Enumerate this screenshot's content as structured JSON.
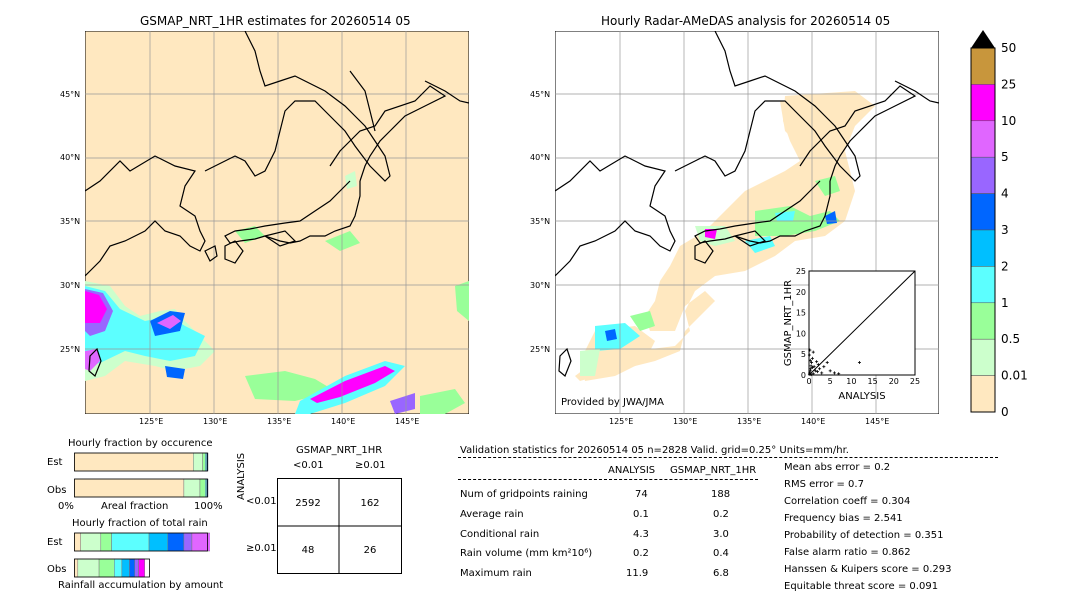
{
  "left_map": {
    "title": "GSMAP_NRT_1HR estimates for 20260514 05",
    "lat_labels": [
      "45°N",
      "40°N",
      "35°N",
      "30°N",
      "25°N"
    ],
    "lon_labels": [
      "125°E",
      "130°E",
      "135°E",
      "140°E",
      "145°E"
    ]
  },
  "right_map": {
    "title": "Hourly Radar-AMeDAS analysis for 20260514 05",
    "lat_labels": [
      "45°N",
      "40°N",
      "35°N",
      "30°N",
      "25°N"
    ],
    "lon_labels": [
      "125°E",
      "130°E",
      "135°E",
      "140°E",
      "145°E"
    ],
    "credit": "Provided by JWA/JMA"
  },
  "colorbar": {
    "labels": [
      "50",
      "25",
      "10",
      "5",
      "4",
      "3",
      "2",
      "1",
      "0.5",
      "0.01",
      "0"
    ],
    "colors": [
      "#c8963c",
      "#ff00ff",
      "#e066ff",
      "#9966ff",
      "#0066ff",
      "#00bfff",
      "#5cffff",
      "#99ff99",
      "#ccffcc",
      "#ffe8c0"
    ]
  },
  "chart_data": [
    {
      "type": "scatter",
      "title": "",
      "xlabel": "ANALYSIS",
      "ylabel": "GSMAP_NRT_1HR",
      "xlim": [
        0,
        25
      ],
      "ylim": [
        0,
        25
      ],
      "ticks": [
        "0",
        "5",
        "10",
        "15",
        "20",
        "25"
      ],
      "points": [
        [
          0.1,
          0.2
        ],
        [
          0.2,
          0.5
        ],
        [
          0.3,
          1.0
        ],
        [
          0.4,
          1.5
        ],
        [
          0.5,
          2.2
        ],
        [
          0.6,
          3.0
        ],
        [
          0.8,
          4.0
        ],
        [
          1.0,
          5.5
        ],
        [
          0.2,
          6.0
        ],
        [
          0.3,
          3.5
        ],
        [
          1.2,
          2.0
        ],
        [
          1.5,
          1.0
        ],
        [
          2.0,
          0.8
        ],
        [
          2.5,
          1.5
        ],
        [
          3.0,
          0.5
        ],
        [
          3.5,
          2.0
        ],
        [
          4.3,
          3.0
        ],
        [
          5.0,
          1.0
        ],
        [
          6.0,
          0.5
        ],
        [
          7.0,
          0.3
        ],
        [
          11.9,
          3.0
        ],
        [
          0.5,
          0.1
        ],
        [
          1.0,
          0.3
        ],
        [
          0.8,
          1.8
        ],
        [
          0.1,
          4.8
        ],
        [
          1.8,
          3.2
        ],
        [
          2.2,
          2.5
        ]
      ]
    },
    {
      "type": "bar",
      "title": "Hourly fraction by occurence",
      "series": [
        {
          "name": "Est",
          "values": [
            0.89,
            0.07,
            0.02,
            0.01,
            0.01
          ],
          "colors": [
            "#ffe8c0",
            "#ccffcc",
            "#99ff99",
            "#5cffff",
            "#0066ff"
          ]
        },
        {
          "name": "Obs",
          "values": [
            0.82,
            0.12,
            0.04,
            0.01,
            0.01
          ],
          "colors": [
            "#ffe8c0",
            "#ccffcc",
            "#99ff99",
            "#5cffff",
            "#0066ff"
          ]
        }
      ],
      "xlabel": "Areal fraction",
      "xmin_label": "0%",
      "xmax_label": "100%"
    },
    {
      "type": "bar",
      "title": "Hourly fraction of total rain",
      "series": [
        {
          "name": "Est",
          "values": [
            0.05,
            0.15,
            0.08,
            0.28,
            0.14,
            0.12,
            0.06,
            0.22
          ],
          "colors": [
            "#ffe8c0",
            "#ccffcc",
            "#99ff99",
            "#5cffff",
            "#00bfff",
            "#0066ff",
            "#9966ff",
            "#e066ff"
          ]
        },
        {
          "name": "Obs",
          "values": [
            0.05,
            0.28,
            0.2,
            0.1,
            0.1,
            0.07,
            0.05,
            0.08
          ],
          "colors": [
            "#ffe8c0",
            "#ccffcc",
            "#99ff99",
            "#5cffff",
            "#00bfff",
            "#0066ff",
            "#9966ff",
            "#ff00ff"
          ]
        }
      ],
      "xlabel": "Rainfall accumulation by amount"
    },
    {
      "type": "table",
      "title": "GSMAP_NRT_1HR",
      "col_headers": [
        "<0.01",
        "≥0.01"
      ],
      "row_axis_label": "ANALYSIS",
      "row_headers": [
        "<0.01",
        "≥0.01"
      ],
      "cells": [
        [
          "2592",
          "162"
        ],
        [
          "48",
          "26"
        ]
      ]
    }
  ],
  "validation": {
    "header": "Validation statistics for 20260514 05  n=2828 Valid. grid=0.25° Units=mm/hr.",
    "col_analysis": "ANALYSIS",
    "col_gsmap": "GSMAP_NRT_1HR",
    "rows": [
      {
        "label": "Num of gridpoints raining",
        "a": "74",
        "g": "188"
      },
      {
        "label": "Average rain",
        "a": "0.1",
        "g": "0.2"
      },
      {
        "label": "Conditional rain",
        "a": "4.3",
        "g": "3.0"
      },
      {
        "label": "Rain volume (mm km²10⁶)",
        "a": "0.2",
        "g": "0.4"
      },
      {
        "label": "Maximum rain",
        "a": "11.9",
        "g": "6.8"
      }
    ],
    "scores": [
      "Mean abs error =    0.2",
      "RMS error =    0.7",
      "Correlation coeff =  0.304",
      "Frequency bias =  2.541",
      "Probability of detection =  0.351",
      "False alarm ratio =  0.862",
      "Hanssen & Kuipers score =  0.293",
      "Equitable threat score =  0.091"
    ]
  }
}
